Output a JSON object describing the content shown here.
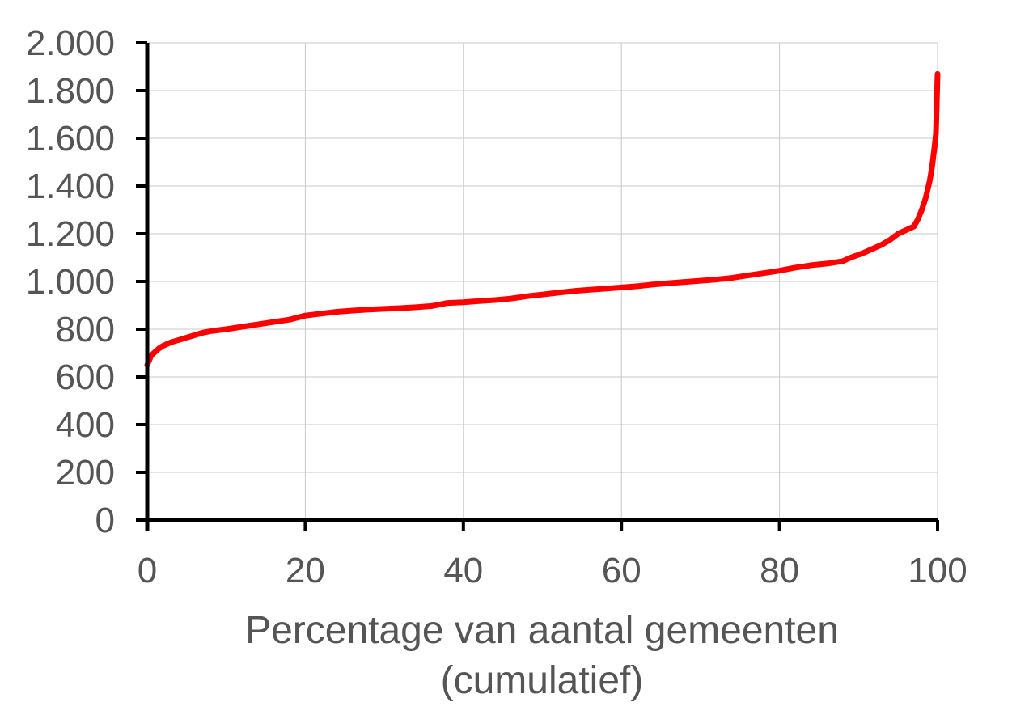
{
  "chart_data": {
    "type": "line",
    "title": "",
    "xlabel": "Percentage van aantal gemeenten",
    "xlabel_line2": "(cumulatief)",
    "ylabel": "",
    "xlim": [
      0,
      100
    ],
    "ylim": [
      0,
      2000
    ],
    "x_ticks": [
      0,
      20,
      40,
      60,
      80,
      100
    ],
    "y_ticks": [
      0,
      200,
      400,
      600,
      800,
      1000,
      1200,
      1400,
      1600,
      1800,
      2000
    ],
    "x_tick_labels": [
      "0",
      "20",
      "40",
      "60",
      "80",
      "100"
    ],
    "y_tick_labels": [
      "0",
      "200",
      "400",
      "600",
      "800",
      "1.000",
      "1.200",
      "1.400",
      "1.600",
      "1.800",
      "2.000"
    ],
    "grid": true,
    "legend": "none",
    "series": [
      {
        "color": "#ff0000",
        "x": [
          0,
          0.5,
          1,
          1.5,
          2,
          3,
          4,
          5,
          6,
          7,
          8,
          10,
          12,
          14,
          16,
          18,
          20,
          22,
          24,
          26,
          28,
          30,
          32,
          34,
          36,
          38,
          40,
          42,
          44,
          46,
          48,
          50,
          52,
          54,
          56,
          58,
          60,
          62,
          64,
          66,
          68,
          70,
          72,
          74,
          76,
          78,
          80,
          82,
          84,
          86,
          88,
          89,
          90,
          91,
          92,
          93,
          94,
          95,
          96,
          97,
          97.5,
          98,
          98.5,
          99,
          99.3,
          99.6,
          99.8,
          100
        ],
        "values": [
          650,
          690,
          705,
          720,
          730,
          745,
          755,
          765,
          775,
          785,
          792,
          800,
          810,
          820,
          830,
          840,
          857,
          865,
          873,
          878,
          882,
          885,
          888,
          892,
          897,
          910,
          913,
          918,
          922,
          928,
          938,
          945,
          953,
          960,
          965,
          970,
          975,
          980,
          987,
          993,
          998,
          1003,
          1008,
          1015,
          1025,
          1035,
          1045,
          1058,
          1068,
          1075,
          1085,
          1100,
          1112,
          1125,
          1140,
          1155,
          1175,
          1200,
          1215,
          1230,
          1260,
          1300,
          1350,
          1420,
          1480,
          1560,
          1620,
          1870
        ]
      }
    ]
  }
}
